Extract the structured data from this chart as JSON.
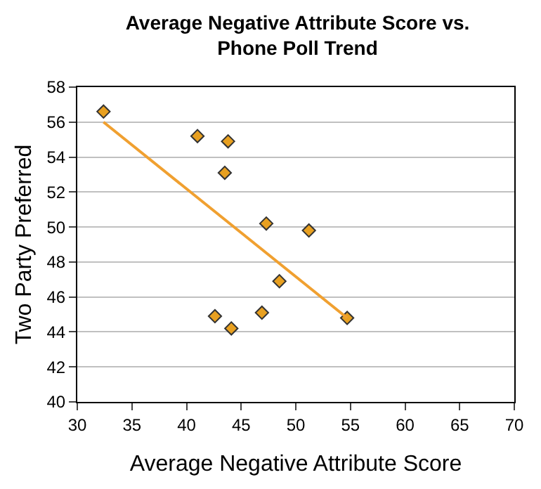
{
  "chart_data": {
    "type": "scatter",
    "title": "Average Negative Attribute Score vs.\nPhone Poll Trend",
    "xlabel": "Average Negative Attribute Score",
    "ylabel": "Two Party Preferred",
    "series": [
      {
        "color": "#e8a020",
        "marker": "diamond",
        "x": [
          32.4,
          41.0,
          43.8,
          43.5,
          47.3,
          51.2,
          48.5,
          42.6,
          44.1,
          46.9,
          54.7
        ],
        "values": [
          56.6,
          55.2,
          54.9,
          53.1,
          50.2,
          49.8,
          46.9,
          44.9,
          44.2,
          45.1,
          44.8
        ]
      },
      {
        "type": "line",
        "color": "#f0a030",
        "marker": "none",
        "x": [
          32.4,
          54.7
        ],
        "values": [
          56.0,
          44.8
        ]
      }
    ],
    "xlim": [
      30,
      70
    ],
    "xticks": [
      30,
      35,
      40,
      45,
      50,
      55,
      60,
      65,
      70
    ],
    "ylim": [
      40,
      58
    ],
    "yticks": [
      40,
      42,
      44,
      46,
      48,
      50,
      52,
      54,
      56,
      58
    ],
    "grid": "y"
  }
}
